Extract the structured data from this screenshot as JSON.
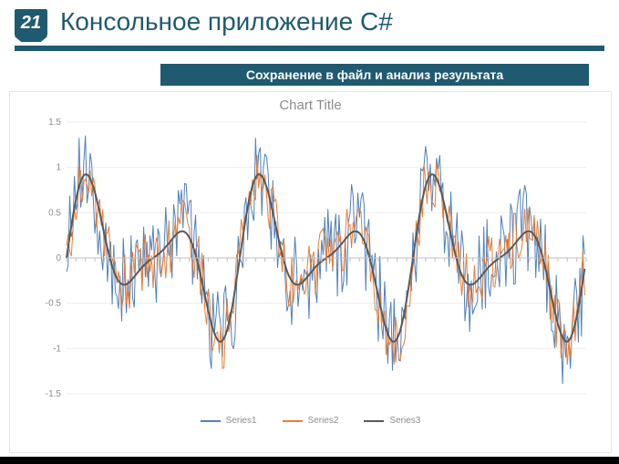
{
  "slide_number": "21",
  "title": "Консольное приложение C#",
  "subtitle": "Сохранение в файл и анализ результата",
  "accent_color": "#1f5a70",
  "page_bg": "#ffffff",
  "figure": {
    "type": "line",
    "title": "Chart Title",
    "title_color": "#8c8c8c",
    "title_fontsize": 15,
    "background_color": "#ffffff",
    "panel_border_color": "#e6e6e6",
    "grid_color": "#eeeeee",
    "axis_color": "#bfbfbf",
    "tick_color": "#8c8c8c",
    "tick_fontsize": 10,
    "ylim": [
      -1.5,
      1.5
    ],
    "yticks": [
      -1.5,
      -1,
      -0.5,
      0,
      0.5,
      1,
      1.5
    ],
    "xlim": [
      0,
      330
    ],
    "n_points": 330,
    "legend": [
      {
        "label": "Series1",
        "color": "#4f81bd"
      },
      {
        "label": "Series2",
        "color": "#ed7d31"
      },
      {
        "label": "Series3",
        "color": "#595959"
      }
    ],
    "series": {
      "signal": {
        "periods": 6,
        "amplitude": 1.05,
        "color": "#595959",
        "line_width": 2.0
      },
      "noisy_low": {
        "noise_amp": 0.35,
        "color": "#ed7d31",
        "line_width": 1.0
      },
      "noisy_high": {
        "noise_amp": 0.55,
        "color": "#4f81bd",
        "line_width": 1.0
      }
    },
    "x_axis_tick_marks": true,
    "x_tick_density": 55
  }
}
